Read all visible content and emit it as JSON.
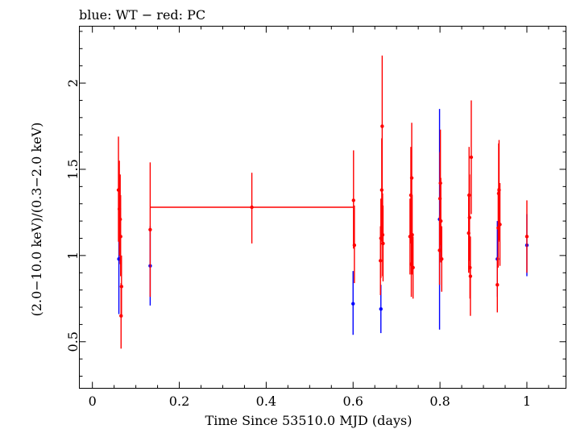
{
  "chart_data": {
    "type": "scatter",
    "title": "blue: WT − red: PC",
    "xlabel": "Time Since 53510.0 MJD (days)",
    "ylabel": "(2.0−10.0 keV)/(0.3−2.0 keV)",
    "xlim": [
      -0.03,
      1.09
    ],
    "ylim": [
      0.23,
      2.33
    ],
    "xticks": [
      0,
      0.2,
      0.4,
      0.6,
      0.8,
      1
    ],
    "xtick_labels": [
      "0",
      "0.2",
      "0.4",
      "0.6",
      "0.8",
      "1"
    ],
    "yticks": [
      0.5,
      1,
      1.5,
      2
    ],
    "ytick_labels": [
      "0.5",
      "1",
      "1.5",
      "2"
    ],
    "grid": false,
    "legend": "none",
    "series": [
      {
        "name": "WT",
        "color": "#0000ff",
        "points": [
          {
            "x": 0.061,
            "y": 0.98,
            "ylo": 0.66,
            "yhi": 1.3
          },
          {
            "x": 0.133,
            "y": 0.94,
            "ylo": 0.71,
            "yhi": 1.17
          },
          {
            "x": 0.6,
            "y": 0.72,
            "ylo": 0.54,
            "yhi": 0.91
          },
          {
            "x": 0.664,
            "y": 0.69,
            "ylo": 0.55,
            "yhi": 0.83
          },
          {
            "x": 0.799,
            "y": 1.21,
            "ylo": 0.57,
            "yhi": 1.85
          },
          {
            "x": 0.932,
            "y": 0.98,
            "ylo": 0.76,
            "yhi": 1.2
          },
          {
            "x": 1.0,
            "y": 1.06,
            "ylo": 0.88,
            "yhi": 1.24
          }
        ]
      },
      {
        "name": "PC",
        "color": "#ff0000",
        "points": [
          {
            "x": 0.06,
            "y": 1.38,
            "ylo": 1.08,
            "yhi": 1.69
          },
          {
            "x": 0.062,
            "y": 1.27,
            "ylo": 1.0,
            "yhi": 1.55
          },
          {
            "x": 0.064,
            "y": 1.21,
            "ylo": 0.95,
            "yhi": 1.47
          },
          {
            "x": 0.065,
            "y": 1.11,
            "ylo": 0.88,
            "yhi": 1.35
          },
          {
            "x": 0.066,
            "y": 0.65,
            "ylo": 0.46,
            "yhi": 0.84
          },
          {
            "x": 0.067,
            "y": 0.82,
            "ylo": 0.64,
            "yhi": 1.0
          },
          {
            "x": 0.133,
            "y": 1.15,
            "ylo": 0.76,
            "yhi": 1.54
          },
          {
            "x": 0.367,
            "y": 1.28,
            "ylo": 1.07,
            "yhi": 1.48,
            "xlo": 0.133,
            "xhi": 0.6
          },
          {
            "x": 0.601,
            "y": 1.32,
            "ylo": 1.04,
            "yhi": 1.61
          },
          {
            "x": 0.603,
            "y": 1.06,
            "ylo": 0.84,
            "yhi": 1.29
          },
          {
            "x": 0.663,
            "y": 0.97,
            "ylo": 0.77,
            "yhi": 1.17
          },
          {
            "x": 0.664,
            "y": 1.1,
            "ylo": 0.87,
            "yhi": 1.33
          },
          {
            "x": 0.666,
            "y": 1.38,
            "ylo": 1.08,
            "yhi": 1.68
          },
          {
            "x": 0.667,
            "y": 1.75,
            "ylo": 1.33,
            "yhi": 2.16
          },
          {
            "x": 0.668,
            "y": 1.12,
            "ylo": 0.88,
            "yhi": 1.36
          },
          {
            "x": 0.669,
            "y": 1.07,
            "ylo": 0.85,
            "yhi": 1.29
          },
          {
            "x": 0.731,
            "y": 1.11,
            "ylo": 0.89,
            "yhi": 1.33
          },
          {
            "x": 0.733,
            "y": 1.35,
            "ylo": 1.07,
            "yhi": 1.63
          },
          {
            "x": 0.734,
            "y": 0.95,
            "ylo": 0.76,
            "yhi": 1.14
          },
          {
            "x": 0.735,
            "y": 1.45,
            "ylo": 1.13,
            "yhi": 1.77
          },
          {
            "x": 0.736,
            "y": 1.12,
            "ylo": 0.89,
            "yhi": 1.35
          },
          {
            "x": 0.738,
            "y": 0.93,
            "ylo": 0.75,
            "yhi": 1.11
          },
          {
            "x": 0.799,
            "y": 1.03,
            "ylo": 0.83,
            "yhi": 1.23
          },
          {
            "x": 0.8,
            "y": 1.33,
            "ylo": 1.06,
            "yhi": 1.6
          },
          {
            "x": 0.801,
            "y": 1.42,
            "ylo": 1.11,
            "yhi": 1.73
          },
          {
            "x": 0.802,
            "y": 1.2,
            "ylo": 0.96,
            "yhi": 1.45
          },
          {
            "x": 0.804,
            "y": 0.98,
            "ylo": 0.79,
            "yhi": 1.17
          },
          {
            "x": 0.866,
            "y": 1.13,
            "ylo": 0.9,
            "yhi": 1.36
          },
          {
            "x": 0.867,
            "y": 1.35,
            "ylo": 1.08,
            "yhi": 1.63
          },
          {
            "x": 0.868,
            "y": 1.22,
            "ylo": 0.97,
            "yhi": 1.47
          },
          {
            "x": 0.869,
            "y": 0.93,
            "ylo": 0.75,
            "yhi": 1.11
          },
          {
            "x": 0.87,
            "y": 0.88,
            "ylo": 0.65,
            "yhi": 1.11
          },
          {
            "x": 0.872,
            "y": 1.57,
            "ylo": 1.24,
            "yhi": 1.9
          },
          {
            "x": 0.932,
            "y": 0.83,
            "ylo": 0.67,
            "yhi": 0.99
          },
          {
            "x": 0.934,
            "y": 1.16,
            "ylo": 0.93,
            "yhi": 1.39
          },
          {
            "x": 0.935,
            "y": 1.36,
            "ylo": 1.08,
            "yhi": 1.65
          },
          {
            "x": 0.936,
            "y": 1.38,
            "ylo": 1.09,
            "yhi": 1.67
          },
          {
            "x": 0.938,
            "y": 1.18,
            "ylo": 0.94,
            "yhi": 1.42
          },
          {
            "x": 1.0,
            "y": 1.11,
            "ylo": 0.9,
            "yhi": 1.32
          }
        ]
      }
    ]
  }
}
